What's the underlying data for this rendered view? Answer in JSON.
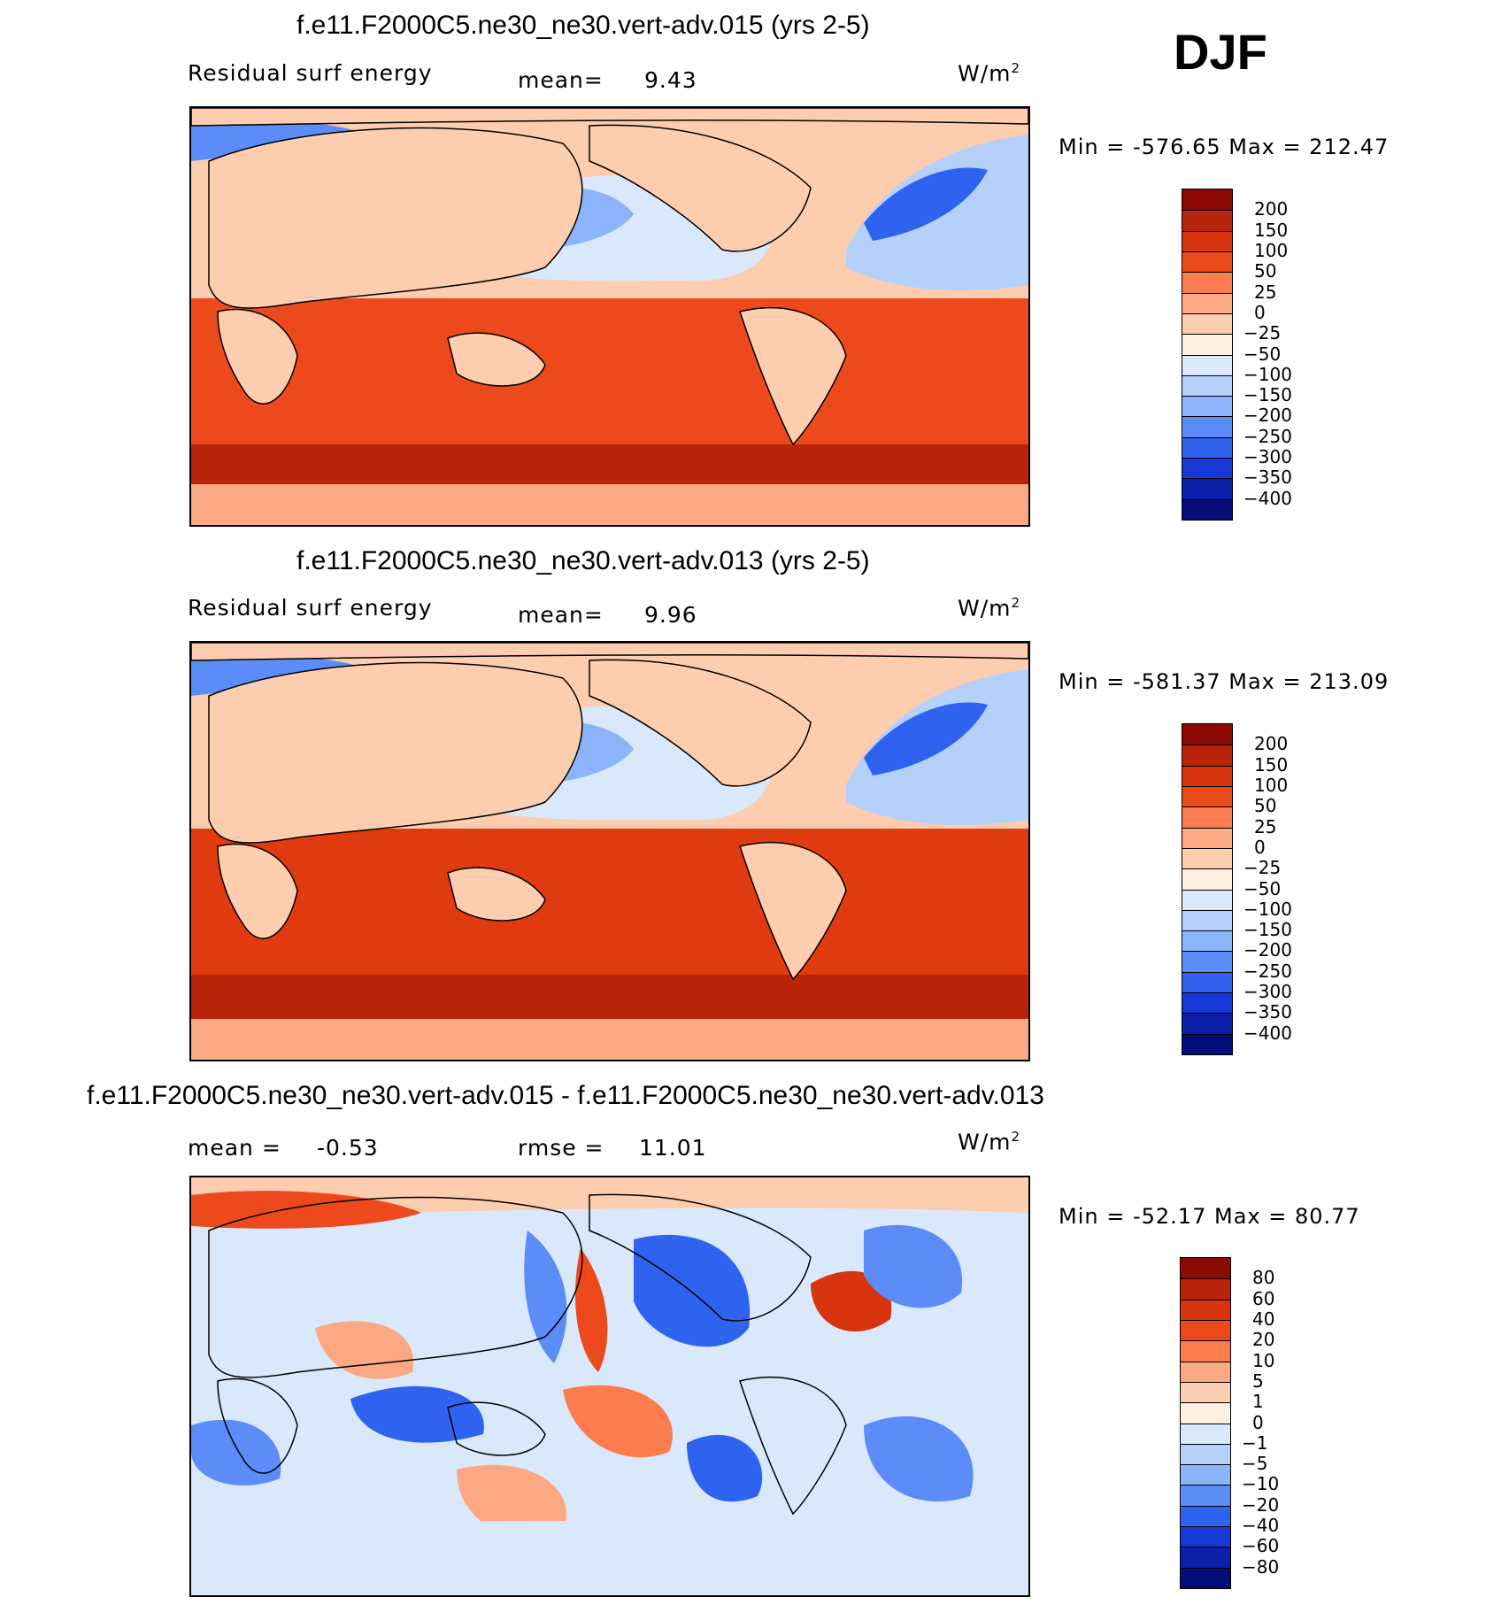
{
  "season": "DJF",
  "units": "W/m",
  "units_exp": "2",
  "panels": [
    {
      "title": "f.e11.F2000C5.ne30_ne30.vert-adv.015 (yrs 2-5)",
      "left_label": "Residual surf energy",
      "mean_label": "mean=",
      "mean_value": "9.43",
      "min_label": "Min =",
      "min_value": "-576.65",
      "max_label": "Max =",
      "max_value": "212.47"
    },
    {
      "title": "f.e11.F2000C5.ne30_ne30.vert-adv.013 (yrs 2-5)",
      "left_label": "Residual surf energy",
      "mean_label": "mean=",
      "mean_value": "9.96",
      "min_label": "Min =",
      "min_value": "-581.37",
      "max_label": "Max =",
      "max_value": "213.09"
    },
    {
      "title": "f.e11.F2000C5.ne30_ne30.vert-adv.015 - f.e11.F2000C5.ne30_ne30.vert-adv.013",
      "mean_label": "mean =",
      "mean_value": "-0.53",
      "rmse_label": "rmse =",
      "rmse_value": "11.01",
      "min_label": "Min =",
      "min_value": "-52.17",
      "max_label": "Max =",
      "max_value": "80.77"
    }
  ],
  "legend_main": {
    "labels": [
      "200",
      "150",
      "100",
      "50",
      "25",
      "0",
      "-25",
      "-50",
      "-100",
      "-150",
      "-200",
      "-250",
      "-300",
      "-350",
      "-400"
    ],
    "colors": [
      "#8b0a04",
      "#b8240a",
      "#d73410",
      "#ec4a1c",
      "#fb7c4e",
      "#fca883",
      "#fdcdb0",
      "#fdf0e0",
      "#d9e9fb",
      "#b4d0fb",
      "#8bb4fa",
      "#5b8cf7",
      "#2f62ee",
      "#1638d6",
      "#0a1ea8",
      "#050d7a"
    ]
  },
  "legend_diff": {
    "labels": [
      "80",
      "60",
      "40",
      "20",
      "10",
      "5",
      "1",
      "0",
      "-1",
      "-5",
      "-10",
      "-20",
      "-40",
      "-60",
      "-80"
    ],
    "colors": [
      "#8b0a04",
      "#b8240a",
      "#d73410",
      "#ec4a1c",
      "#fb7c4e",
      "#fca883",
      "#fdcdb0",
      "#fdf0e0",
      "#d9e9fb",
      "#b4d0fb",
      "#8bb4fa",
      "#5b8cf7",
      "#2f62ee",
      "#1638d6",
      "#0a1ea8",
      "#050d7a"
    ]
  },
  "map_colors": {
    "land": "#fdcdb0",
    "ocean_warm": "#e03a10",
    "ocean_mid": "#ec4a1c",
    "ocean_deep_warm": "#b8240a",
    "ocean_cool": "#d9e9fb",
    "ocean_blue": "#8bb4fa",
    "ocean_dark": "#1638d6",
    "polar": "#fca883",
    "diff_bg": "#d9e9fb",
    "diff_red": "#fb7c4e",
    "diff_blue": "#5b8cf7"
  }
}
